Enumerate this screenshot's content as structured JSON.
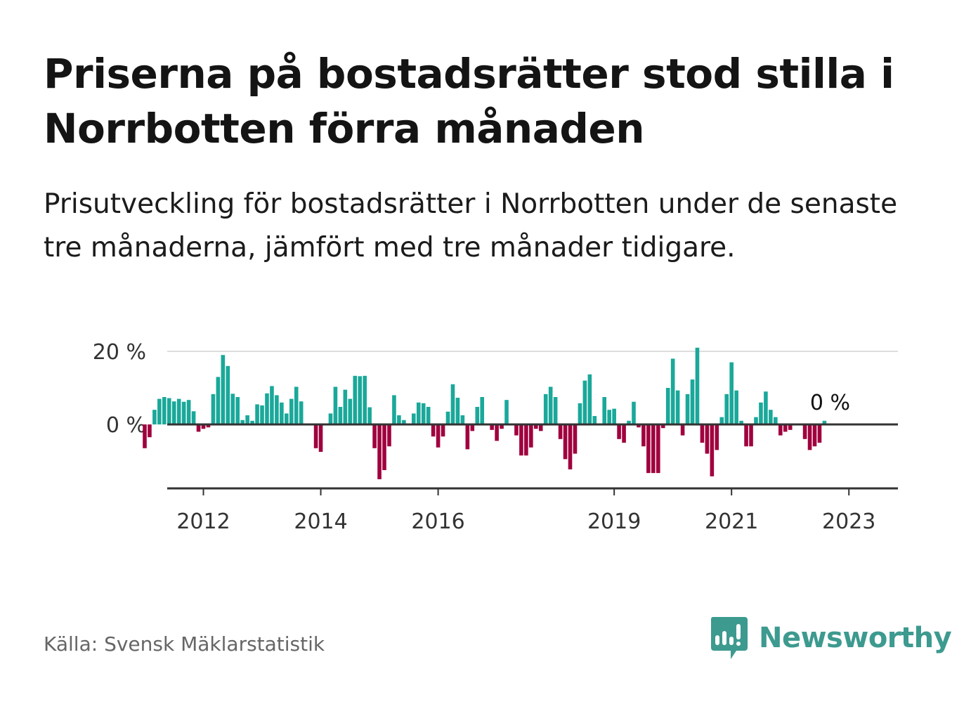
{
  "title": "Priserna på bostadsrätter stod stilla i Norrbotten förra månaden",
  "subtitle": "Prisutveckling för bostadsrätter i Norrbotten under de senaste tre månaderna, jämfört med tre månader tidigare.",
  "source": "Källa: Svensk Mäklarstatistik",
  "brand": {
    "name": "Newsworthy",
    "icon": "newsworthy-logo-icon"
  },
  "colors": {
    "positive": "#1aa89a",
    "negative": "#a0003e",
    "grid": "#dddddd",
    "axis": "#333333",
    "brand": "#3d9a8f"
  },
  "chart_data": {
    "type": "bar",
    "unit": "%",
    "x_start": "2011-01",
    "x_step": "month",
    "values": [
      -6.5,
      -3.5,
      4,
      7,
      7.5,
      7.2,
      6.3,
      7,
      6.2,
      6.7,
      3.6,
      -2,
      -1.2,
      -0.8,
      8.3,
      13,
      19,
      16,
      8.4,
      7.5,
      1.2,
      2.5,
      1,
      5.5,
      5.2,
      8.5,
      10.5,
      8,
      6,
      3,
      7,
      10.3,
      6.3,
      null,
      null,
      -6.5,
      -7.5,
      null,
      3,
      10.3,
      4.8,
      9.5,
      7,
      13.3,
      13.2,
      13.3,
      4.7,
      -6.5,
      -15,
      -12.5,
      -6,
      8,
      2.5,
      1.2,
      null,
      3,
      6,
      5.8,
      4.8,
      -3.3,
      -6.3,
      -3.3,
      3.5,
      11,
      7.3,
      2.5,
      -6.8,
      -1.8,
      4.8,
      7.5,
      null,
      -1.5,
      -4.5,
      -1.2,
      6.7,
      null,
      -3,
      -8.5,
      -8.5,
      -6.3,
      -1.2,
      -1.8,
      8.3,
      10.3,
      7.5,
      -4,
      -9.5,
      -12.3,
      -8,
      5.8,
      12,
      13.7,
      2.3,
      null,
      7.5,
      4,
      4.3,
      -4,
      -5,
      1,
      6.2,
      -0.8,
      -6,
      -13.3,
      -13.3,
      -13.3,
      -1,
      10,
      18,
      9.3,
      -3,
      8.3,
      12.3,
      21,
      -5,
      -8,
      -14.2,
      -7,
      2,
      8.3,
      17,
      9.3,
      1,
      -6,
      -6,
      2,
      6,
      9,
      4,
      2,
      -3,
      -2,
      -1.5,
      null,
      null,
      -4,
      -7,
      -6,
      -5,
      1
    ],
    "y_ticks": [
      0,
      20
    ],
    "y_tick_labels": [
      "0 %",
      "20 %"
    ],
    "x_ticks": [
      "2012",
      "2014",
      "2016",
      "2019",
      "2021",
      "2023"
    ],
    "x_tick_months": [
      "2012-01",
      "2014-01",
      "2016-01",
      "2019-01",
      "2021-01",
      "2023-01"
    ],
    "ylim": [
      -17,
      21
    ],
    "grid": true,
    "annotation": {
      "label": "0 %",
      "value": 0
    }
  }
}
